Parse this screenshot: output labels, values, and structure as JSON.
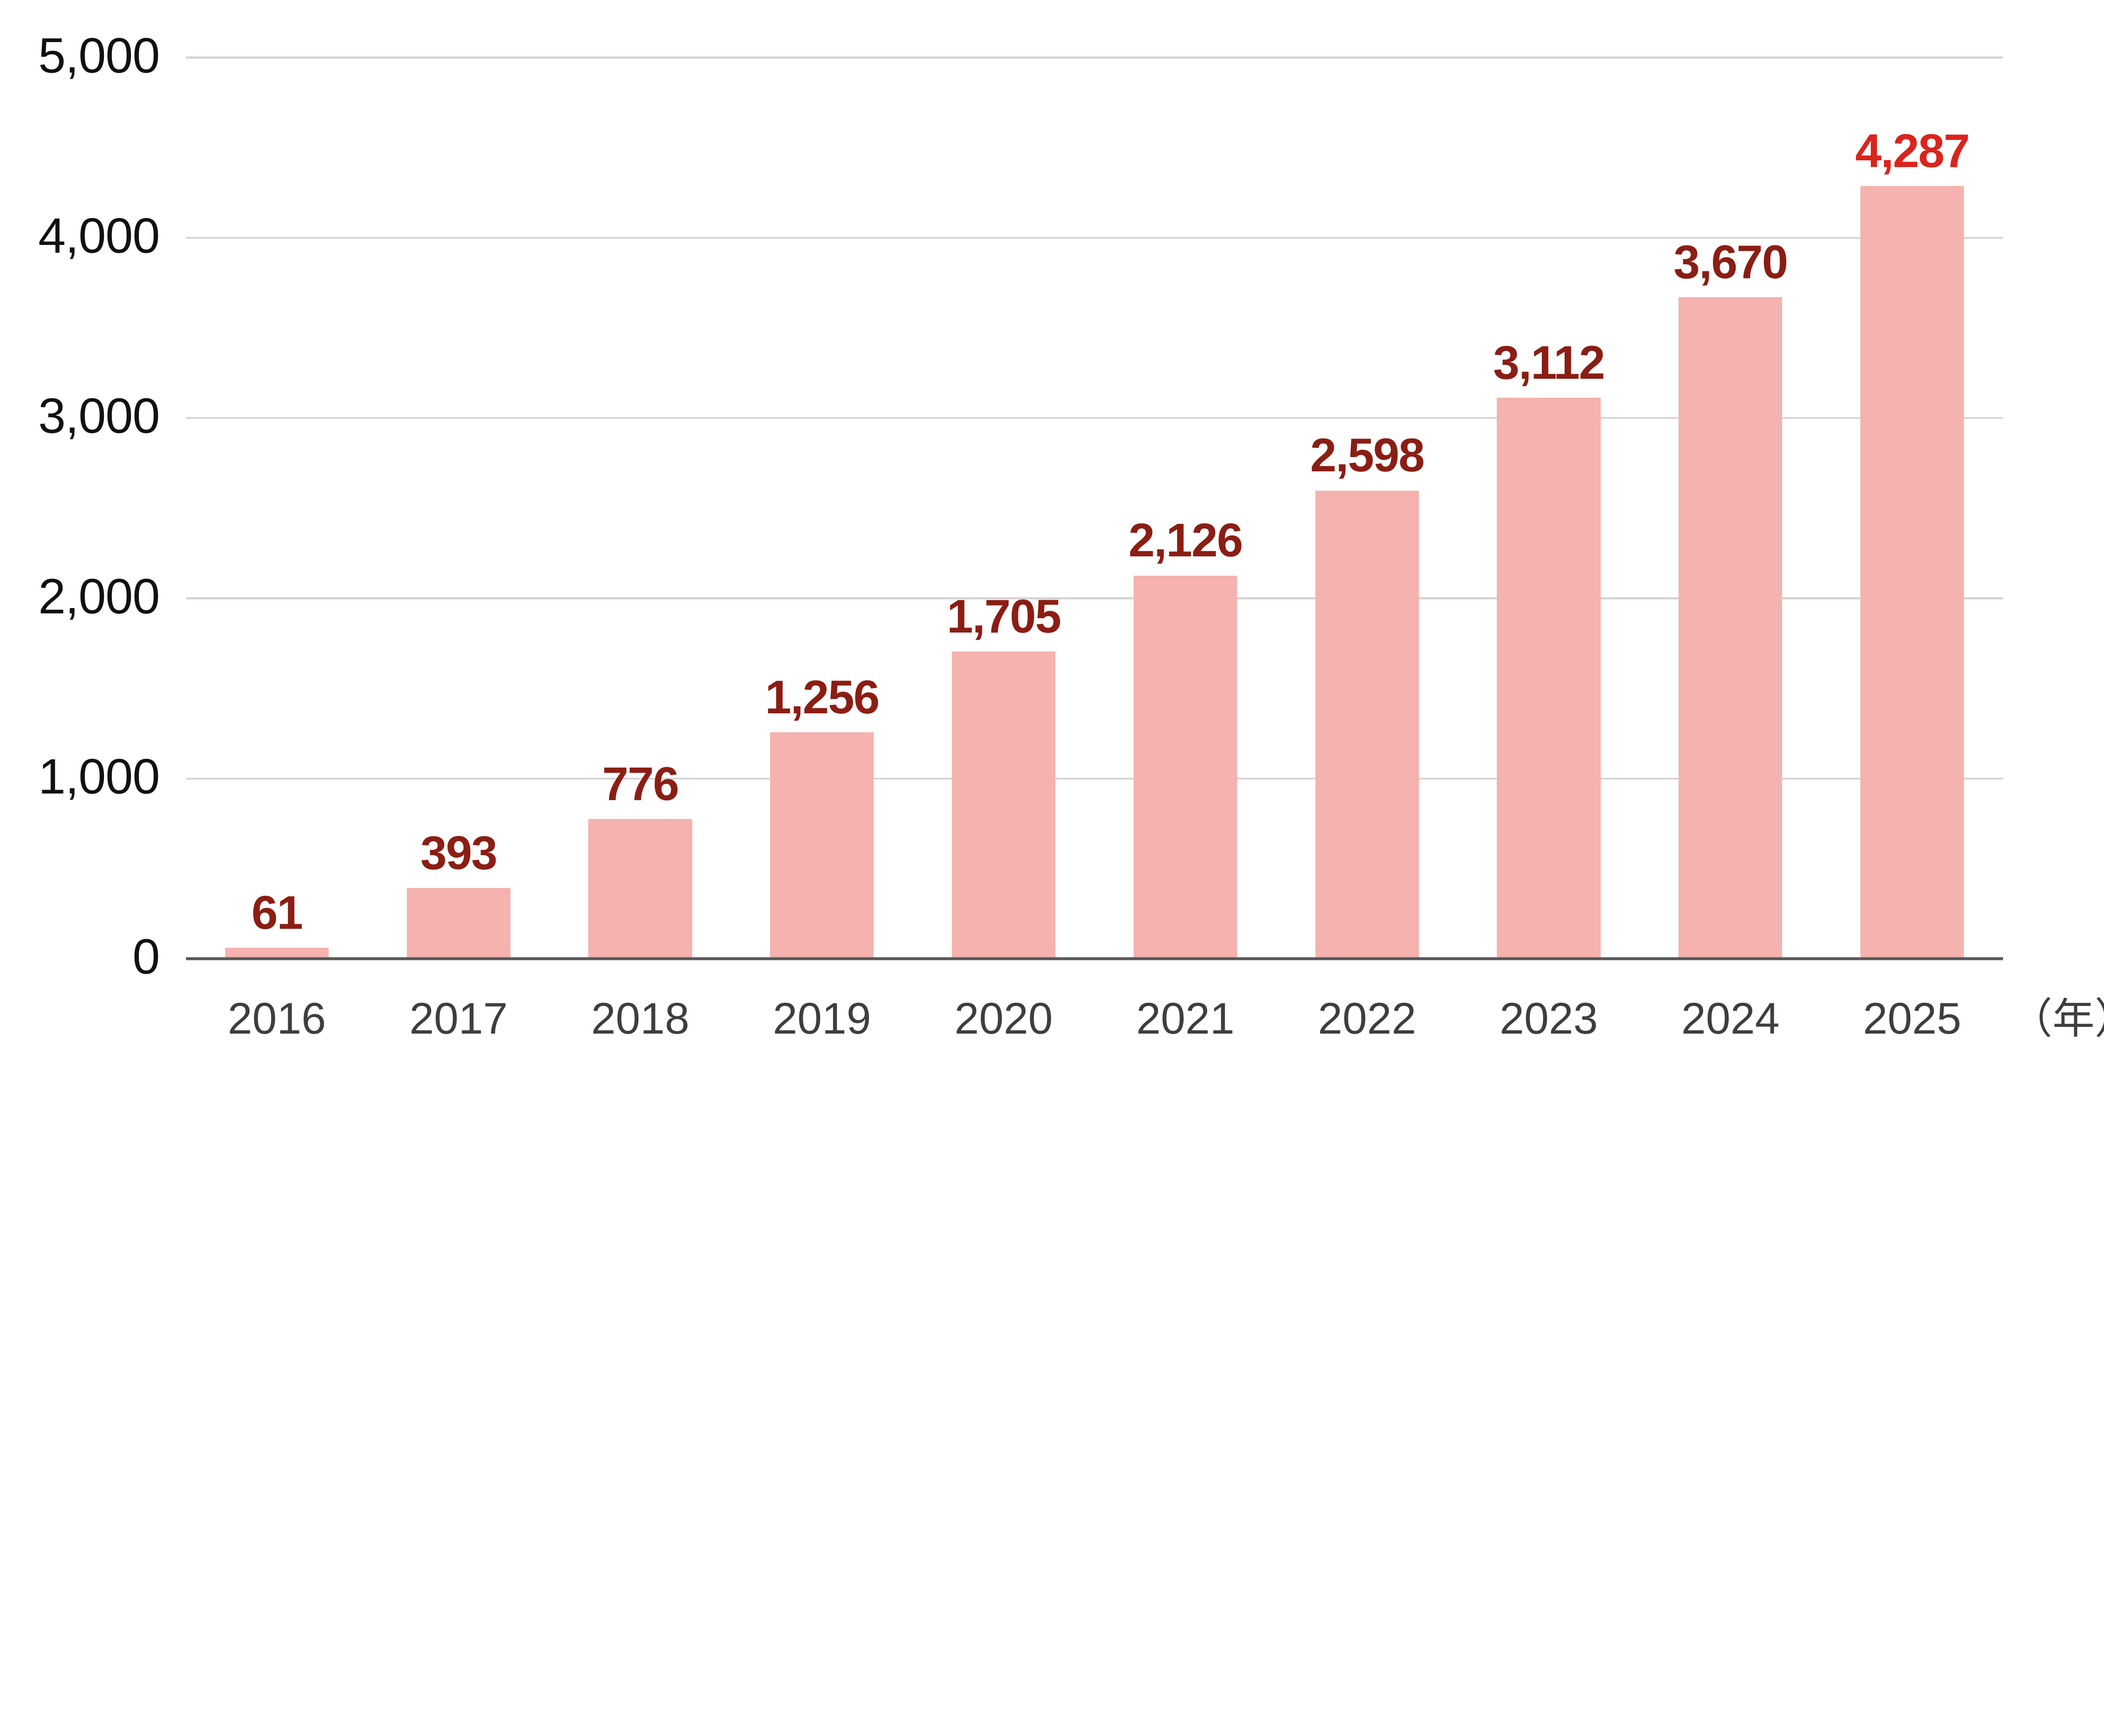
{
  "chart_data": {
    "type": "bar",
    "title": "",
    "categories": [
      "2016",
      "2017",
      "2018",
      "2019",
      "2020",
      "2021",
      "2022",
      "2023",
      "2024",
      "2025"
    ],
    "values": [
      61,
      393,
      776,
      1256,
      1705,
      2126,
      2598,
      3112,
      3670,
      4287
    ],
    "data_labels": [
      "61",
      "393",
      "776",
      "1,256",
      "1,705",
      "2,126",
      "2,598",
      "3,112",
      "3,670",
      "4,287"
    ],
    "highlight_index": 9,
    "x_unit_label": "（年）",
    "xlabel": "",
    "ylabel": "",
    "y_axis": {
      "min": 0,
      "max": 5000,
      "tick_step": 1000,
      "ticks": [
        0,
        1000,
        2000,
        3000,
        4000,
        5000
      ],
      "tick_labels": [
        "0",
        "1,000",
        "2,000",
        "3,000",
        "4,000",
        "5,000"
      ]
    },
    "grid": true,
    "legend": false,
    "colors": {
      "bar_fill": "#F5B2AE",
      "data_label": "#8B1E14",
      "data_label_highlight": "#DA241C",
      "gridline": "#D3D3D3",
      "axis_line": "#595959",
      "y_tick_label": "#111111",
      "x_tick_label": "#3E3E3E",
      "background": "#FFFFFF"
    }
  }
}
